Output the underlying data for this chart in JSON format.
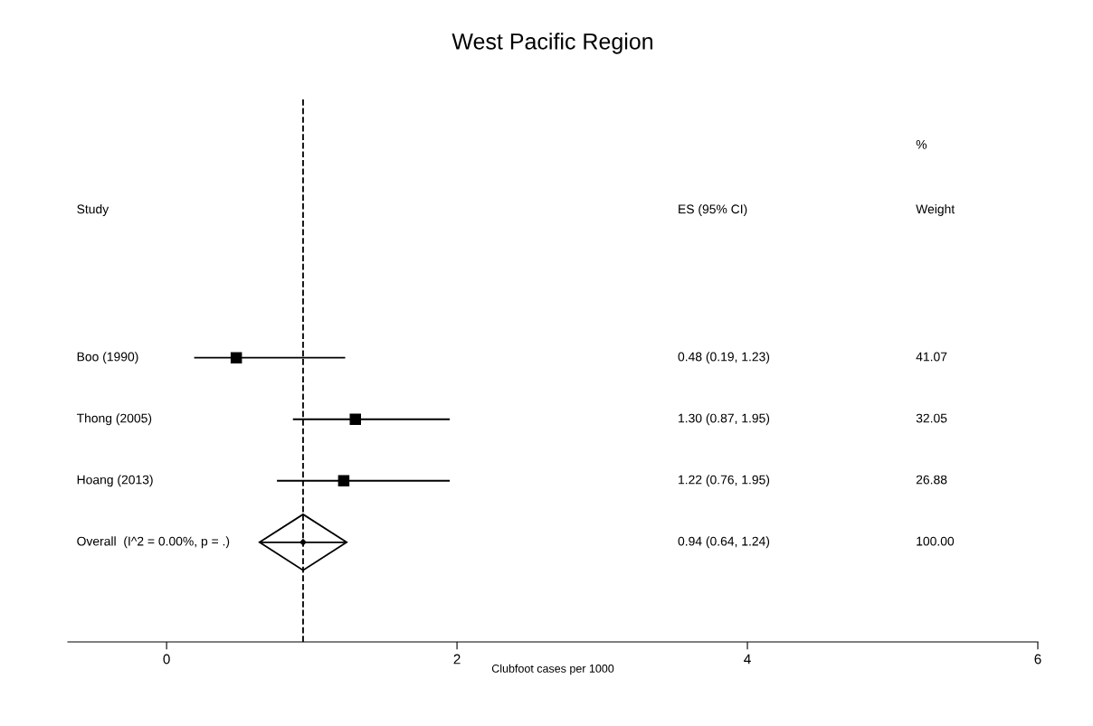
{
  "chart_data": {
    "type": "scatter",
    "orientation": "horizontal",
    "title": "West Pacific Region",
    "xlabel": "Clubfoot cases per 1000",
    "categories": [
      "Boo (1990)",
      "Thong (2005)",
      "Hoang (2013)",
      "Overall  (I^2 = 0.00%, p = .)"
    ],
    "series": [
      {
        "color": "#000000",
        "marker": "square",
        "values": [
          0.48,
          1.3,
          1.22,
          null
        ],
        "errors": [
          [
            0.19,
            1.23
          ],
          [
            0.87,
            1.95
          ],
          [
            0.76,
            1.95
          ],
          null
        ]
      },
      {
        "color": "#000000",
        "marker": "diamond",
        "values": [
          null,
          null,
          null,
          0.94
        ],
        "errors": [
          null,
          null,
          null,
          [
            0.64,
            1.24
          ]
        ]
      }
    ],
    "xlim": [
      -0.68,
      6
    ],
    "xticks": [
      0,
      2,
      4,
      6
    ],
    "grid": false,
    "ref_lines": [
      {
        "axis": "x",
        "value": 0.94,
        "line_style": "dashed",
        "color": "#000000"
      }
    ],
    "annotations": [
      "Study",
      "ES (95% CI)",
      "%",
      "Weight",
      "0.48 (0.19, 1.23)",
      "41.07",
      "1.30 (0.87, 1.95)",
      "32.05",
      "1.22 (0.76, 1.95)",
      "26.88",
      "0.94 (0.64, 1.24)",
      "100.00"
    ]
  }
}
